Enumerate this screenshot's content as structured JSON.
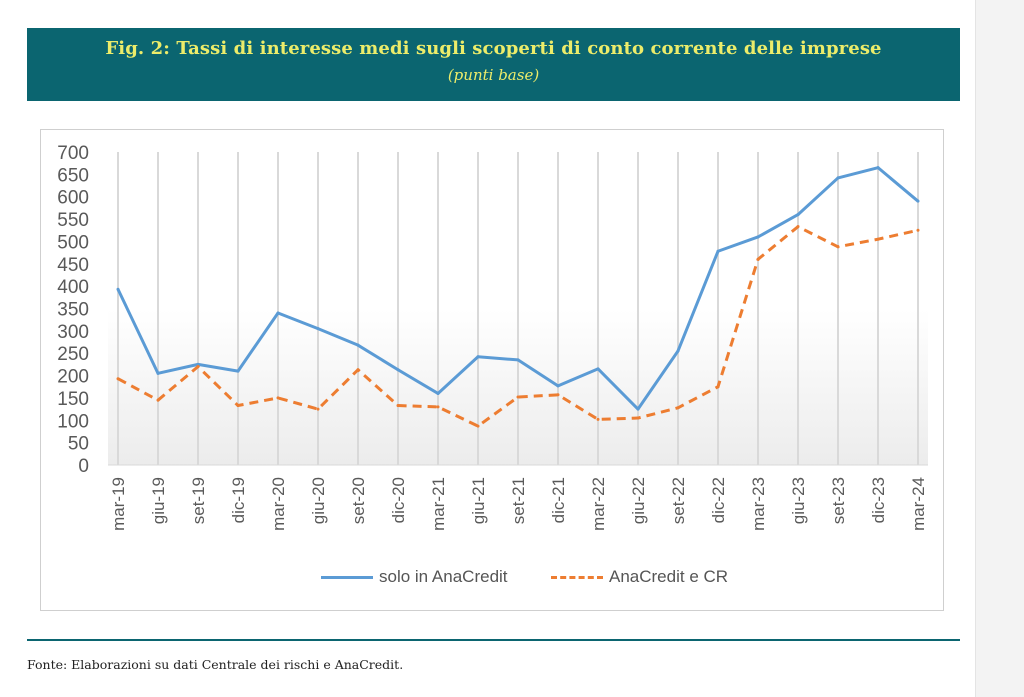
{
  "header": {
    "title": "Fig. 2: Tassi di interesse medi sugli scoperti di conto corrente delle imprese",
    "subtitle": "(punti base)"
  },
  "footer": {
    "source": "Fonte: Elaborazioni su dati Centrale dei rischi e AnaCredit."
  },
  "colors": {
    "header_bg": "#0b6570",
    "header_text": "#ecec6a",
    "series_solid": "#5b9bd5",
    "series_dashed": "#ed7d31"
  },
  "chart_data": {
    "type": "line",
    "title": "Fig. 2: Tassi di interesse medi sugli scoperti di conto corrente delle imprese",
    "subtitle": "(punti base)",
    "xlabel": "",
    "ylabel": "",
    "ylim": [
      0,
      700
    ],
    "yticks": [
      0,
      50,
      100,
      150,
      200,
      250,
      300,
      350,
      400,
      450,
      500,
      550,
      600,
      650,
      700
    ],
    "grid": "vertical",
    "legend": "bottom",
    "categories": [
      "mar-19",
      "giu-19",
      "set-19",
      "dic-19",
      "mar-20",
      "giu-20",
      "set-20",
      "dic-20",
      "mar-21",
      "giu-21",
      "set-21",
      "dic-21",
      "mar-22",
      "giu-22",
      "set-22",
      "dic-22",
      "mar-23",
      "giu-23",
      "set-23",
      "dic-23",
      "mar-24"
    ],
    "series": [
      {
        "name": "solo in AnaCredit",
        "style": "solid",
        "color": "#5b9bd5",
        "values": [
          393,
          205,
          225,
          210,
          340,
          305,
          268,
          213,
          160,
          242,
          235,
          177,
          215,
          125,
          255,
          478,
          510,
          560,
          642,
          665,
          590
        ]
      },
      {
        "name": "AnaCredit e CR",
        "style": "dashed",
        "color": "#ed7d31",
        "values": [
          193,
          145,
          220,
          133,
          150,
          125,
          213,
          133,
          130,
          87,
          152,
          157,
          102,
          105,
          128,
          175,
          460,
          533,
          488,
          505,
          525
        ]
      }
    ]
  }
}
